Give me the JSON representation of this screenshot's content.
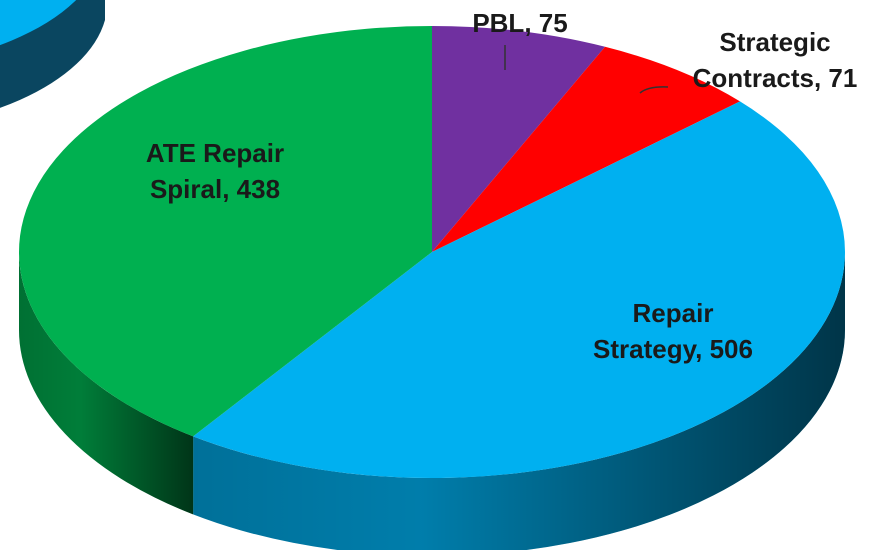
{
  "chart_data": {
    "type": "pie3d",
    "values": [
      75,
      71,
      506,
      438
    ],
    "value_labels": [
      [
        "PBL, 75"
      ],
      [
        "Strategic",
        "Contracts, 71"
      ],
      [
        "Repair",
        "Strategy, 506"
      ],
      [
        "ATE Repair",
        "Spiral, 438"
      ]
    ],
    "colors": [
      "#7030a0",
      "#ff0000",
      "#00b0f0",
      "#00b050"
    ]
  }
}
